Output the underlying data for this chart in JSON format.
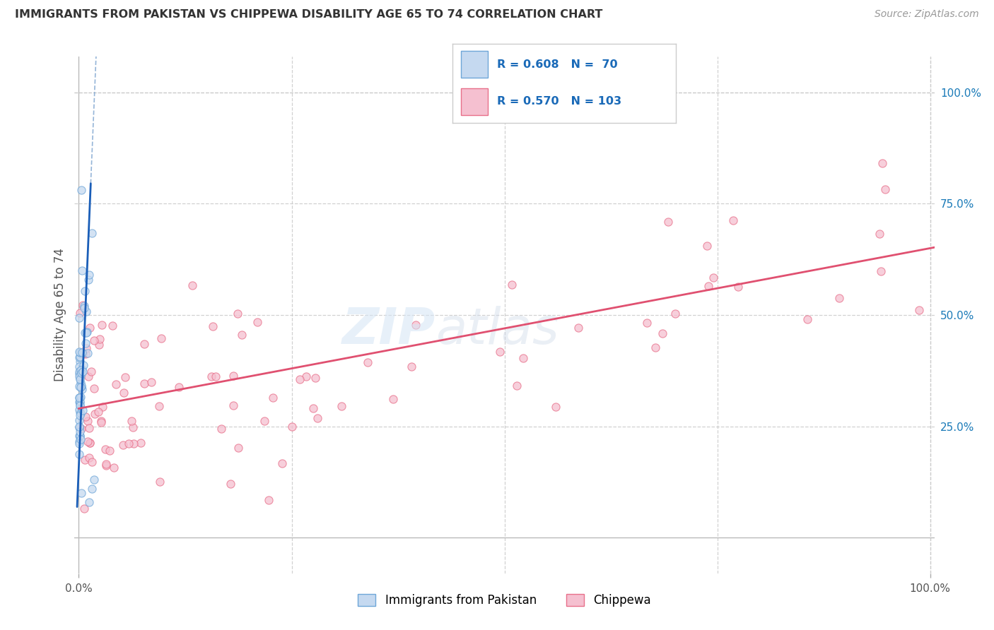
{
  "title": "IMMIGRANTS FROM PAKISTAN VS CHIPPEWA DISABILITY AGE 65 TO 74 CORRELATION CHART",
  "source": "Source: ZipAtlas.com",
  "ylabel": "Disability Age 65 to 74",
  "color_pakistan_fill": "#c5d9f0",
  "color_pakistan_edge": "#6ea6d8",
  "color_chippewa_fill": "#f5c0d0",
  "color_chippewa_edge": "#e8708a",
  "color_line_pakistan": "#1a5eb8",
  "color_line_chippewa": "#e05070",
  "color_dash_extension": "#8aadd4",
  "color_grid": "#cccccc",
  "color_title": "#333333",
  "color_source": "#999999",
  "color_right_axis": "#1a7ab8",
  "color_legend_text": "#1a6ab8",
  "background_color": "#ffffff",
  "R_pakistan": 0.608,
  "N_pakistan": 70,
  "R_chippewa": 0.57,
  "N_chippewa": 103,
  "label_pakistan": "Immigrants from Pakistan",
  "label_chippewa": "Chippewa",
  "marker_size": 65,
  "marker_alpha": 0.75
}
